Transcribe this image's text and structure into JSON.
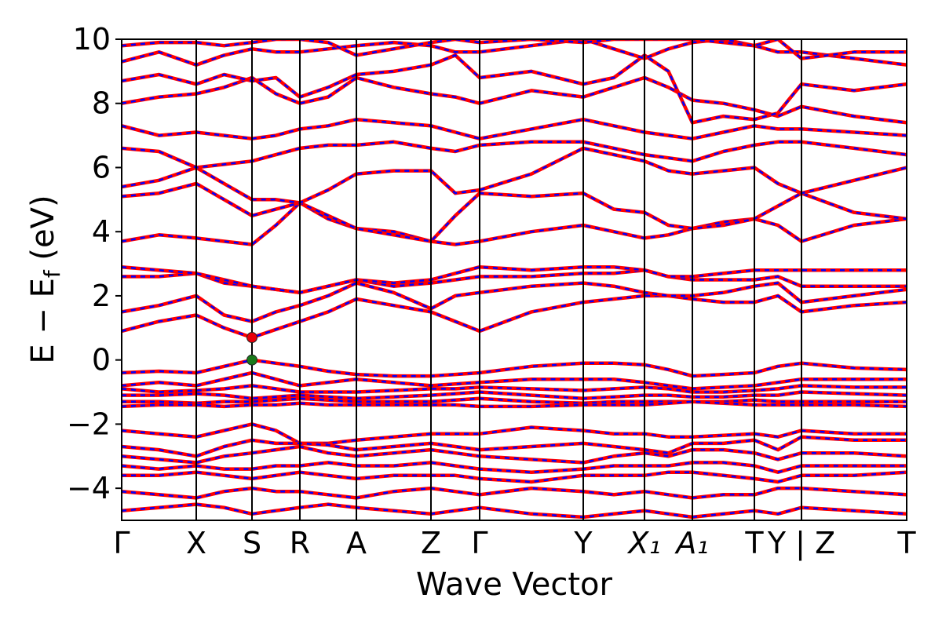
{
  "chart_data": {
    "type": "band",
    "xlabel": "Wave Vector",
    "ylabel": {
      "main": "E − E",
      "sub": "f",
      "unit": " (eV)"
    },
    "xlim": [
      0,
      1000
    ],
    "ylim": [
      -5,
      10
    ],
    "yticks": [
      {
        "value": -4,
        "label": "−4"
      },
      {
        "value": -2,
        "label": "−2"
      },
      0,
      2,
      4,
      6,
      8,
      10
    ],
    "xticks": [
      {
        "value": 0,
        "label": "Γ"
      },
      {
        "value": 95,
        "label": "X"
      },
      {
        "value": 166,
        "label": "S"
      },
      {
        "value": 227,
        "label": "R"
      },
      {
        "value": 299,
        "label": "A"
      },
      {
        "value": 394,
        "label": "Z"
      },
      {
        "value": 456,
        "label": "Γ"
      },
      {
        "value": 588,
        "label": "Y"
      },
      {
        "value": 666,
        "label": "X₁"
      },
      {
        "value": 727,
        "label": "A₁"
      },
      {
        "value": 806,
        "label": "T"
      },
      {
        "value": 866,
        "label": "Y | Z"
      },
      {
        "value": 1000,
        "label": "T"
      }
    ],
    "line_color": "#ff0000",
    "dash_color": "#0000ff",
    "x": [
      0,
      47.5,
      95,
      130.5,
      166,
      196.5,
      227,
      263,
      299,
      346.5,
      394,
      425,
      456,
      522,
      588,
      627,
      666,
      696.5,
      727,
      766.5,
      806,
      836,
      866,
      933,
      1000
    ],
    "series": [
      {
        "values": [
          -0.4,
          -0.35,
          -0.4,
          -0.2,
          0.0,
          -0.1,
          -0.2,
          -0.35,
          -0.45,
          -0.5,
          -0.5,
          -0.45,
          -0.4,
          -0.2,
          -0.1,
          -0.1,
          -0.15,
          -0.3,
          -0.5,
          -0.45,
          -0.4,
          -0.2,
          -0.1,
          -0.25,
          -0.3
        ]
      },
      {
        "values": [
          -0.8,
          -0.7,
          -0.8,
          -0.6,
          -0.4,
          -0.6,
          -0.8,
          -0.7,
          -0.6,
          -0.7,
          -0.8,
          -0.75,
          -0.7,
          -0.6,
          -0.6,
          -0.6,
          -0.7,
          -0.8,
          -0.9,
          -0.85,
          -0.8,
          -0.7,
          -0.6,
          -0.6,
          -0.6
        ]
      },
      {
        "values": [
          -0.9,
          -1.0,
          -0.95,
          -0.9,
          -0.8,
          -0.9,
          -1.0,
          -1.0,
          -1.0,
          -0.95,
          -0.9,
          -0.9,
          -0.85,
          -0.9,
          -0.95,
          -0.9,
          -0.85,
          -0.9,
          -1.0,
          -1.0,
          -0.95,
          -0.9,
          -0.8,
          -0.85,
          -0.85
        ]
      },
      {
        "values": [
          -1.1,
          -1.1,
          -1.05,
          -1.1,
          -1.2,
          -1.15,
          -1.1,
          -1.15,
          -1.2,
          -1.15,
          -1.1,
          -1.05,
          -1.0,
          -1.1,
          -1.2,
          -1.15,
          -1.1,
          -1.1,
          -1.15,
          -1.15,
          -1.1,
          -1.1,
          -1.0,
          -1.05,
          -1.1
        ]
      },
      {
        "values": [
          -1.3,
          -1.3,
          -1.35,
          -1.3,
          -1.3,
          -1.25,
          -1.2,
          -1.25,
          -1.3,
          -1.3,
          -1.3,
          -1.25,
          -1.2,
          -1.3,
          -1.35,
          -1.3,
          -1.3,
          -1.3,
          -1.3,
          -1.3,
          -1.25,
          -1.3,
          -1.3,
          -1.3,
          -1.3
        ]
      },
      {
        "values": [
          -1.45,
          -1.4,
          -1.4,
          -1.45,
          -1.4,
          -1.4,
          -1.35,
          -1.4,
          -1.4,
          -1.4,
          -1.4,
          -1.4,
          -1.45,
          -1.45,
          -1.4,
          -1.4,
          -1.4,
          -1.35,
          -1.3,
          -1.35,
          -1.4,
          -1.4,
          -1.4,
          -1.4,
          -1.45
        ]
      },
      {
        "values": [
          -2.2,
          -2.3,
          -2.4,
          -2.2,
          -2.0,
          -2.2,
          -2.6,
          -2.6,
          -2.5,
          -2.4,
          -2.3,
          -2.3,
          -2.3,
          -2.1,
          -2.2,
          -2.3,
          -2.3,
          -2.4,
          -2.4,
          -2.35,
          -2.3,
          -2.4,
          -2.2,
          -2.3,
          -2.3
        ]
      },
      {
        "values": [
          -2.7,
          -2.8,
          -3.0,
          -2.7,
          -2.5,
          -2.6,
          -2.6,
          -2.65,
          -2.8,
          -2.7,
          -2.6,
          -2.7,
          -2.8,
          -2.7,
          -2.6,
          -2.7,
          -2.8,
          -2.9,
          -2.6,
          -2.6,
          -2.5,
          -2.8,
          -2.4,
          -2.5,
          -2.5
        ]
      },
      {
        "values": [
          -3.0,
          -3.1,
          -3.2,
          -3.0,
          -2.9,
          -2.8,
          -2.7,
          -2.9,
          -3.0,
          -2.9,
          -2.8,
          -2.9,
          -3.0,
          -3.1,
          -3.2,
          -3.0,
          -2.9,
          -3.0,
          -2.8,
          -2.8,
          -2.9,
          -3.1,
          -2.9,
          -2.9,
          -3.0
        ]
      },
      {
        "values": [
          -3.3,
          -3.4,
          -3.3,
          -3.4,
          -3.4,
          -3.3,
          -3.3,
          -3.2,
          -3.3,
          -3.3,
          -3.2,
          -3.3,
          -3.4,
          -3.5,
          -3.4,
          -3.3,
          -3.3,
          -3.3,
          -3.2,
          -3.2,
          -3.3,
          -3.5,
          -3.3,
          -3.3,
          -3.3
        ]
      },
      {
        "values": [
          -3.6,
          -3.6,
          -3.5,
          -3.6,
          -3.7,
          -3.6,
          -3.5,
          -3.6,
          -3.7,
          -3.6,
          -3.6,
          -3.6,
          -3.7,
          -3.8,
          -3.6,
          -3.6,
          -3.6,
          -3.5,
          -3.5,
          -3.6,
          -3.7,
          -3.8,
          -3.6,
          -3.6,
          -3.5
        ]
      },
      {
        "values": [
          -4.1,
          -4.2,
          -4.3,
          -4.1,
          -4.0,
          -4.1,
          -4.1,
          -4.2,
          -4.3,
          -4.1,
          -4.0,
          -4.1,
          -4.2,
          -4.0,
          -4.1,
          -4.2,
          -4.1,
          -4.2,
          -4.3,
          -4.2,
          -4.2,
          -4.0,
          -4.0,
          -4.1,
          -4.2
        ]
      },
      {
        "values": [
          -4.7,
          -4.6,
          -4.5,
          -4.6,
          -4.8,
          -4.7,
          -4.6,
          -4.5,
          -4.6,
          -4.7,
          -4.8,
          -4.7,
          -4.6,
          -4.8,
          -4.9,
          -4.8,
          -4.7,
          -4.8,
          -4.9,
          -4.8,
          -4.7,
          -4.8,
          -4.6,
          -4.7,
          -4.8
        ]
      },
      {
        "values": [
          0.9,
          1.2,
          1.4,
          1.0,
          0.7,
          0.95,
          1.2,
          1.5,
          1.9,
          1.7,
          1.5,
          1.2,
          0.9,
          1.5,
          1.8,
          1.9,
          2.0,
          2.0,
          1.9,
          1.8,
          1.8,
          2.0,
          1.5,
          1.7,
          1.8
        ]
      },
      {
        "values": [
          1.5,
          1.7,
          2.0,
          1.4,
          1.2,
          1.5,
          1.7,
          2.0,
          2.4,
          2.1,
          1.6,
          2.0,
          2.1,
          2.3,
          2.4,
          2.3,
          2.1,
          2.0,
          2.0,
          2.1,
          2.3,
          2.4,
          1.8,
          2.0,
          2.2
        ]
      },
      {
        "values": [
          2.6,
          2.6,
          2.7,
          2.4,
          2.3,
          2.2,
          2.1,
          2.3,
          2.5,
          2.3,
          2.4,
          2.5,
          2.6,
          2.6,
          2.7,
          2.7,
          2.8,
          2.6,
          2.5,
          2.5,
          2.5,
          2.6,
          2.3,
          2.3,
          2.3
        ]
      },
      {
        "values": [
          2.9,
          2.8,
          2.7,
          2.5,
          2.3,
          2.2,
          2.1,
          2.3,
          2.5,
          2.4,
          2.5,
          2.7,
          2.9,
          2.8,
          2.9,
          2.9,
          2.8,
          2.6,
          2.6,
          2.7,
          2.8,
          2.8,
          2.8,
          2.8,
          2.8
        ]
      },
      {
        "values": [
          3.7,
          3.9,
          3.8,
          3.7,
          3.6,
          4.2,
          4.9,
          4.4,
          4.1,
          4.0,
          3.7,
          3.6,
          3.7,
          4.0,
          4.2,
          4.0,
          3.8,
          3.9,
          4.1,
          4.3,
          4.4,
          4.2,
          3.7,
          4.2,
          4.4
        ]
      },
      {
        "values": [
          5.1,
          5.2,
          5.5,
          5.0,
          4.5,
          4.7,
          4.9,
          4.5,
          4.1,
          3.9,
          3.7,
          4.5,
          5.2,
          5.1,
          5.2,
          4.7,
          4.6,
          4.2,
          4.1,
          4.2,
          4.4,
          4.8,
          5.2,
          4.6,
          4.4
        ]
      },
      {
        "values": [
          5.4,
          5.6,
          6.0,
          5.5,
          5.0,
          5.0,
          4.9,
          5.3,
          5.8,
          5.9,
          5.9,
          5.2,
          5.3,
          5.8,
          6.6,
          6.4,
          6.2,
          5.9,
          5.8,
          5.9,
          6.0,
          5.5,
          5.2,
          5.6,
          6.0
        ]
      },
      {
        "values": [
          6.6,
          6.5,
          6.0,
          6.1,
          6.2,
          6.4,
          6.6,
          6.7,
          6.7,
          6.8,
          6.6,
          6.5,
          6.7,
          6.8,
          6.8,
          6.6,
          6.4,
          6.3,
          6.2,
          6.5,
          6.7,
          6.8,
          6.8,
          6.6,
          6.4
        ]
      },
      {
        "values": [
          7.3,
          7.0,
          7.1,
          7.0,
          6.9,
          7.0,
          7.2,
          7.3,
          7.5,
          7.4,
          7.3,
          7.1,
          6.9,
          7.2,
          7.5,
          7.3,
          7.1,
          7.0,
          6.9,
          7.1,
          7.3,
          7.2,
          7.2,
          7.1,
          7.0
        ]
      },
      {
        "values": [
          8.0,
          8.2,
          8.3,
          8.5,
          8.8,
          8.3,
          8.0,
          8.2,
          8.8,
          8.5,
          8.3,
          8.2,
          8.0,
          8.4,
          8.2,
          8.5,
          8.8,
          8.5,
          8.1,
          8.0,
          7.8,
          7.6,
          7.9,
          7.6,
          7.4
        ]
      },
      {
        "values": [
          8.7,
          8.9,
          8.6,
          8.9,
          8.7,
          8.8,
          8.2,
          8.5,
          8.9,
          9.0,
          9.2,
          9.5,
          8.8,
          9.0,
          8.6,
          8.8,
          9.5,
          9.0,
          7.4,
          7.6,
          7.5,
          7.7,
          8.6,
          8.4,
          8.6
        ]
      },
      {
        "values": [
          9.3,
          9.6,
          9.2,
          9.5,
          9.7,
          9.6,
          9.6,
          9.7,
          9.8,
          9.9,
          9.8,
          9.6,
          9.6,
          9.8,
          10.0,
          9.7,
          9.4,
          9.7,
          9.9,
          10.0,
          9.8,
          9.6,
          9.6,
          9.4,
          9.2
        ]
      },
      {
        "values": [
          9.8,
          9.9,
          9.9,
          9.8,
          9.9,
          10.0,
          10.0,
          9.9,
          9.5,
          9.7,
          9.9,
          10.0,
          9.9,
          10.0,
          9.9,
          10.0,
          10.0,
          10.0,
          10.0,
          9.9,
          9.8,
          10.0,
          9.4,
          9.6,
          9.6
        ]
      }
    ],
    "markers": [
      {
        "x": 166,
        "y": 0.7,
        "color": "#e8000b"
      },
      {
        "x": 166,
        "y": 0.0,
        "color": "#1a7a1a"
      }
    ]
  }
}
